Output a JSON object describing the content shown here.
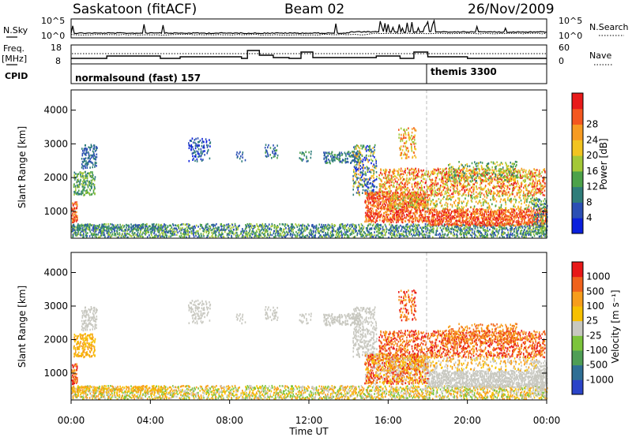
{
  "header": {
    "station": "Saskatoon (fitACF)",
    "beam": "Beam 02",
    "date": "26/Nov/2009"
  },
  "noise_panel": {
    "left_label": "N.Sky",
    "left_ticks": [
      "10^5",
      "10^0"
    ],
    "right_label": "N.Search",
    "right_ticks": [
      "10^5",
      "10^0"
    ]
  },
  "freq_panel": {
    "left_label_1": "Freq.",
    "left_label_2": "[MHz]",
    "left_ticks": [
      "18",
      "8"
    ],
    "right_label": "Nave",
    "right_ticks": [
      "60",
      "0"
    ]
  },
  "cpid_panel": {
    "label": "CPID",
    "modes": [
      {
        "text": "normalsound (fast) 157",
        "start_hour": 0
      },
      {
        "text": "themis 3300",
        "start_hour": 18
      }
    ]
  },
  "chart_data": [
    {
      "type": "heatmap",
      "name": "power",
      "ylabel": "Slant Range [km]",
      "yticks": [
        "1000",
        "2000",
        "3000",
        "4000"
      ],
      "ylim": [
        200,
        4600
      ],
      "xlim": [
        0,
        24
      ],
      "colorbar_label": "Power [dB]",
      "colorbar_ticks": [
        "4",
        "8",
        "12",
        "16",
        "20",
        "24",
        "28"
      ],
      "colorbar_colors": [
        "#0a1fdc",
        "#2b4fb4",
        "#2f7d7a",
        "#4da24a",
        "#a4c837",
        "#f2c420",
        "#f79b22",
        "#f4571f",
        "#e81a1a"
      ]
    },
    {
      "type": "heatmap",
      "name": "velocity",
      "ylabel": "Slant Range [km]",
      "yticks": [
        "1000",
        "2000",
        "3000",
        "4000"
      ],
      "ylim": [
        200,
        4600
      ],
      "xlim": [
        0,
        24
      ],
      "colorbar_label": "Velocity [m s⁻¹]",
      "colorbar_ticks": [
        "1000",
        "500",
        "100",
        "25",
        "-25",
        "-100",
        "-500",
        "-1000"
      ],
      "colorbar_colors": [
        "#2b44c8",
        "#2f6f95",
        "#4f9e55",
        "#7cc43c",
        "#c8c8c0",
        "#f7c000",
        "#f79d1b",
        "#f0621c",
        "#e81818"
      ]
    }
  ],
  "time_axis": {
    "ticks": [
      "00:00",
      "04:00",
      "08:00",
      "12:00",
      "16:00",
      "20:00",
      "00:00"
    ],
    "label": "Time UT"
  }
}
